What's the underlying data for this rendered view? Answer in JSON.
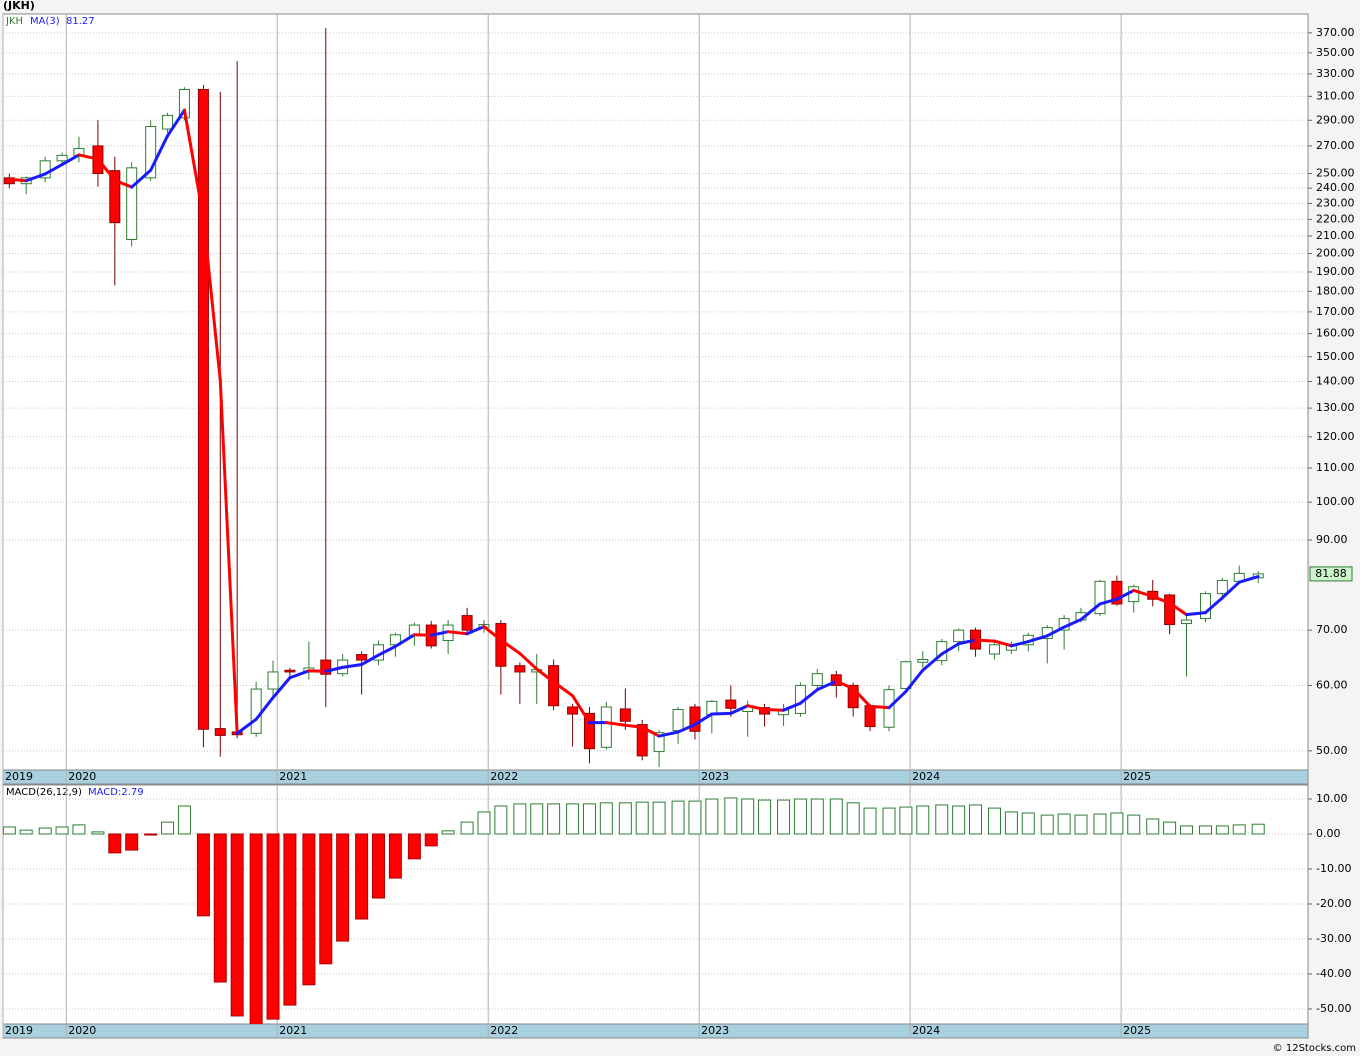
{
  "chart_data": [
    {
      "type": "candlestick",
      "title": "(JKH)",
      "name": "JKH",
      "source": "© 12Stocks.com",
      "x": [
        2019.73,
        2019.81,
        2019.9,
        2019.98,
        2020.06,
        2020.15,
        2020.23,
        2020.31,
        2020.4,
        2020.48,
        2020.56,
        2020.65,
        2020.73,
        2020.81,
        2020.9,
        2020.98,
        2021.06,
        2021.15,
        2021.23,
        2021.31,
        2021.4,
        2021.48,
        2021.56,
        2021.65,
        2021.73,
        2021.81,
        2021.9,
        2021.98,
        2022.06,
        2022.15,
        2022.23,
        2022.31,
        2022.4,
        2022.48,
        2022.56,
        2022.65,
        2022.73,
        2022.81,
        2022.9,
        2022.98,
        2023.06,
        2023.15,
        2023.23,
        2023.31,
        2023.4,
        2023.48,
        2023.56,
        2023.65,
        2023.73,
        2023.81,
        2023.9,
        2023.98,
        2024.06,
        2024.15,
        2024.23,
        2024.31,
        2024.4,
        2024.48,
        2024.56,
        2024.65,
        2024.73,
        2024.81,
        2024.9,
        2024.98,
        2025.06,
        2025.15,
        2025.23,
        2025.31,
        2025.4,
        2025.48,
        2025.56,
        2025.65
      ],
      "open": [
        247,
        243,
        247,
        259,
        263,
        270,
        252,
        208,
        247,
        283,
        292,
        316,
        53.2,
        52.7,
        52.5,
        59.4,
        62.6,
        62.3,
        64.4,
        62,
        65.4,
        64.4,
        67.2,
        69,
        71,
        68,
        72.9,
        70.6,
        71.3,
        63.4,
        62.3,
        63.4,
        56.5,
        55.5,
        50.5,
        56.2,
        53.8,
        49.9,
        52.9,
        56.5,
        55.3,
        57.6,
        55.8,
        56.4,
        55.3,
        55.5,
        60,
        61.8,
        60,
        56.7,
        53.4,
        59.5,
        64,
        64.3,
        67.8,
        70,
        65.5,
        66.2,
        67.2,
        68.4,
        70,
        72,
        73.3,
        80.2,
        75.8,
        78,
        77.2,
        71.3,
        72.3,
        77.5,
        80.2,
        81
      ],
      "high": [
        250,
        248,
        262,
        265,
        277,
        290,
        262,
        258,
        290,
        296,
        318,
        320,
        314,
        342,
        60.6,
        64.3,
        63,
        67.8,
        375,
        65.5,
        66,
        68,
        69.5,
        71.5,
        71.8,
        72,
        74.5,
        72,
        72,
        64,
        65.5,
        64.5,
        57,
        56.5,
        57.3,
        59.5,
        54.5,
        53,
        56.5,
        57,
        57.6,
        60,
        57.5,
        57,
        57,
        60.5,
        62.8,
        62.5,
        60.5,
        57,
        60,
        64.3,
        66,
        68.3,
        70.3,
        70.5,
        67.8,
        67.8,
        69.5,
        71,
        73,
        74.5,
        80.5,
        81.5,
        79.5,
        80.5,
        77.5,
        73,
        78,
        81,
        83.8,
        82.5
      ],
      "low": [
        240,
        236,
        244,
        257,
        258,
        241,
        183,
        204,
        245,
        280,
        290,
        50.5,
        49.2,
        51.8,
        52,
        58,
        61,
        61,
        56.5,
        61.5,
        58.5,
        63.5,
        65,
        67,
        66.5,
        65.5,
        69.5,
        69.5,
        58.5,
        57,
        57,
        56,
        50.6,
        48.3,
        50.2,
        53,
        48.7,
        47.8,
        51,
        51.6,
        52.5,
        55,
        52,
        53.5,
        53.6,
        55,
        59.6,
        58,
        55,
        52.8,
        52.8,
        59,
        63,
        63.5,
        66,
        65,
        64.5,
        65.5,
        66,
        63.8,
        66.3,
        71.5,
        72.8,
        74.9,
        73.5,
        74.8,
        69.2,
        61.5,
        71.6,
        77,
        79.7,
        79.8
      ],
      "close": [
        243,
        247,
        259,
        263,
        268,
        250,
        218,
        254,
        285,
        294,
        316,
        53.1,
        52.2,
        52.3,
        59.4,
        62.3,
        62.3,
        63,
        61.9,
        64.4,
        64.4,
        67.2,
        69.1,
        71,
        67,
        71,
        70,
        71.1,
        63.3,
        62.3,
        62.7,
        56.7,
        55.4,
        50.3,
        56.5,
        54.3,
        49.3,
        52.6,
        56.1,
        52.8,
        57.4,
        56.3,
        56.5,
        55.4,
        56,
        60,
        62,
        60,
        56.4,
        53.5,
        59.3,
        64.1,
        64.5,
        67.8,
        70,
        66.4,
        67.2,
        67.3,
        69,
        70.5,
        72.3,
        73.5,
        80.2,
        75.3,
        79,
        76.3,
        71.1,
        72,
        77.5,
        80.4,
        82,
        81.88
      ],
      "up_color": "#2e7d32",
      "down_color": "#ff0000",
      "ma": {
        "name": "MA(3)",
        "up_color": "#1a1aff",
        "down_color": "#ff0000",
        "values": [
          246,
          245,
          249.7,
          256.3,
          263.3,
          260.3,
          245.3,
          240.7,
          252.3,
          277.7,
          298.3,
          221,
          140.4,
          52.5,
          54.6,
          58,
          61.3,
          62.5,
          62.4,
          63.1,
          63.6,
          65.3,
          66.9,
          69.1,
          69,
          69.7,
          69.3,
          70.7,
          68.1,
          65.6,
          62.8,
          60.6,
          58.3,
          54.1,
          54.1,
          53.7,
          53.4,
          52.1,
          52.7,
          53.8,
          55.4,
          55.5,
          56.7,
          56.1,
          56,
          57.1,
          59.3,
          60.7,
          59.5,
          56.6,
          56.4,
          59,
          62.6,
          65.5,
          67.4,
          68.1,
          67.9,
          67,
          67.8,
          68.9,
          70.6,
          72.1,
          75.3,
          76.3,
          78.2,
          76.9,
          75.5,
          73.1,
          73.5,
          76.6,
          80,
          81.27
        ]
      },
      "log": true,
      "grid": true,
      "xlim": [
        2019.7,
        2025.886
      ],
      "xticks": [
        {
          "value": 2019.7,
          "label": "2019"
        },
        2020,
        2021,
        2022,
        2023,
        2024,
        2025
      ],
      "ylim": [
        47.4,
        390
      ],
      "yticks": [
        {
          "value": 50,
          "label": "50.00"
        },
        {
          "value": 60,
          "label": "60.00"
        },
        {
          "value": 70,
          "label": "70.00"
        },
        {
          "value": 90,
          "label": "90.00"
        },
        {
          "value": 100,
          "label": "100.00"
        },
        {
          "value": 110,
          "label": "110.00"
        },
        {
          "value": 120,
          "label": "120.00"
        },
        {
          "value": 130,
          "label": "130.00"
        },
        {
          "value": 140,
          "label": "140.00"
        },
        {
          "value": 150,
          "label": "150.00"
        },
        {
          "value": 160,
          "label": "160.00"
        },
        {
          "value": 170,
          "label": "170.00"
        },
        {
          "value": 180,
          "label": "180.00"
        },
        {
          "value": 190,
          "label": "190.00"
        },
        {
          "value": 200,
          "label": "200.00"
        },
        {
          "value": 210,
          "label": "210.00"
        },
        {
          "value": 220,
          "label": "220.00"
        },
        {
          "value": 230,
          "label": "230.00"
        },
        {
          "value": 240,
          "label": "240.00"
        },
        {
          "value": 250,
          "label": "250.00"
        },
        {
          "value": 270,
          "label": "270.00"
        },
        {
          "value": 290,
          "label": "290.00"
        },
        {
          "value": 310,
          "label": "310.00"
        },
        {
          "value": 330,
          "label": "330.00"
        },
        {
          "value": 350,
          "label": "350.00"
        },
        {
          "value": 370,
          "label": "370.00"
        }
      ]
    },
    {
      "type": "bar",
      "name": "MACD(26,12,9)",
      "current_label": "MACD:2.79",
      "x": [
        2019.73,
        2019.81,
        2019.9,
        2019.98,
        2020.06,
        2020.15,
        2020.23,
        2020.31,
        2020.4,
        2020.48,
        2020.56,
        2020.65,
        2020.73,
        2020.81,
        2020.9,
        2020.98,
        2021.06,
        2021.15,
        2021.23,
        2021.31,
        2021.4,
        2021.48,
        2021.56,
        2021.65,
        2021.73,
        2021.81,
        2021.9,
        2021.98,
        2022.06,
        2022.15,
        2022.23,
        2022.31,
        2022.4,
        2022.48,
        2022.56,
        2022.65,
        2022.73,
        2022.81,
        2022.9,
        2022.98,
        2023.06,
        2023.15,
        2023.23,
        2023.31,
        2023.4,
        2023.48,
        2023.56,
        2023.65,
        2023.73,
        2023.81,
        2023.9,
        2023.98,
        2024.06,
        2024.15,
        2024.23,
        2024.31,
        2024.4,
        2024.48,
        2024.56,
        2024.65,
        2024.73,
        2024.81,
        2024.9,
        2024.98,
        2025.06,
        2025.15,
        2025.23,
        2025.31,
        2025.4,
        2025.48,
        2025.56,
        2025.65
      ],
      "values": [
        2,
        1.1,
        1.7,
        2,
        2.6,
        0.6,
        -5.4,
        -4.6,
        -0.3,
        3.4,
        8,
        -23.4,
        -42.3,
        -52,
        -55.5,
        -52.9,
        -48.9,
        -43.1,
        -37.1,
        -30.6,
        -24.3,
        -18.3,
        -12.6,
        -7.1,
        -3.4,
        0.9,
        3.4,
        6.3,
        8,
        8.6,
        8.6,
        8.6,
        8.6,
        8.6,
        8.9,
        8.9,
        9.1,
        9.1,
        9.4,
        9.4,
        10,
        10.3,
        10,
        9.7,
        9.7,
        10,
        10,
        10,
        8.9,
        7.4,
        7.4,
        7.7,
        8,
        8.3,
        8,
        8.3,
        7.4,
        6.3,
        6,
        5.4,
        5.7,
        5.4,
        5.7,
        6,
        5.4,
        4.3,
        3.4,
        2.3,
        2.3,
        2.3,
        2.6,
        2.79
      ],
      "up_color": "#2e7d32",
      "down_color": "#ff0000",
      "grid": true,
      "xlim": [
        2019.7,
        2025.886
      ],
      "xticks": [
        {
          "value": 2019.7,
          "label": "2019"
        },
        2020,
        2021,
        2022,
        2023,
        2024,
        2025
      ],
      "ylim": [
        -54.3,
        14
      ],
      "yticks": [
        {
          "value": 10,
          "label": "10.00"
        },
        {
          "value": 0,
          "label": "0.00"
        },
        {
          "value": -10,
          "label": "-10.00"
        },
        {
          "value": -20,
          "label": "-20.00"
        },
        {
          "value": -30,
          "label": "-30.00"
        },
        {
          "value": -40,
          "label": "-40.00"
        },
        {
          "value": -50,
          "label": "-50.00"
        }
      ]
    }
  ]
}
